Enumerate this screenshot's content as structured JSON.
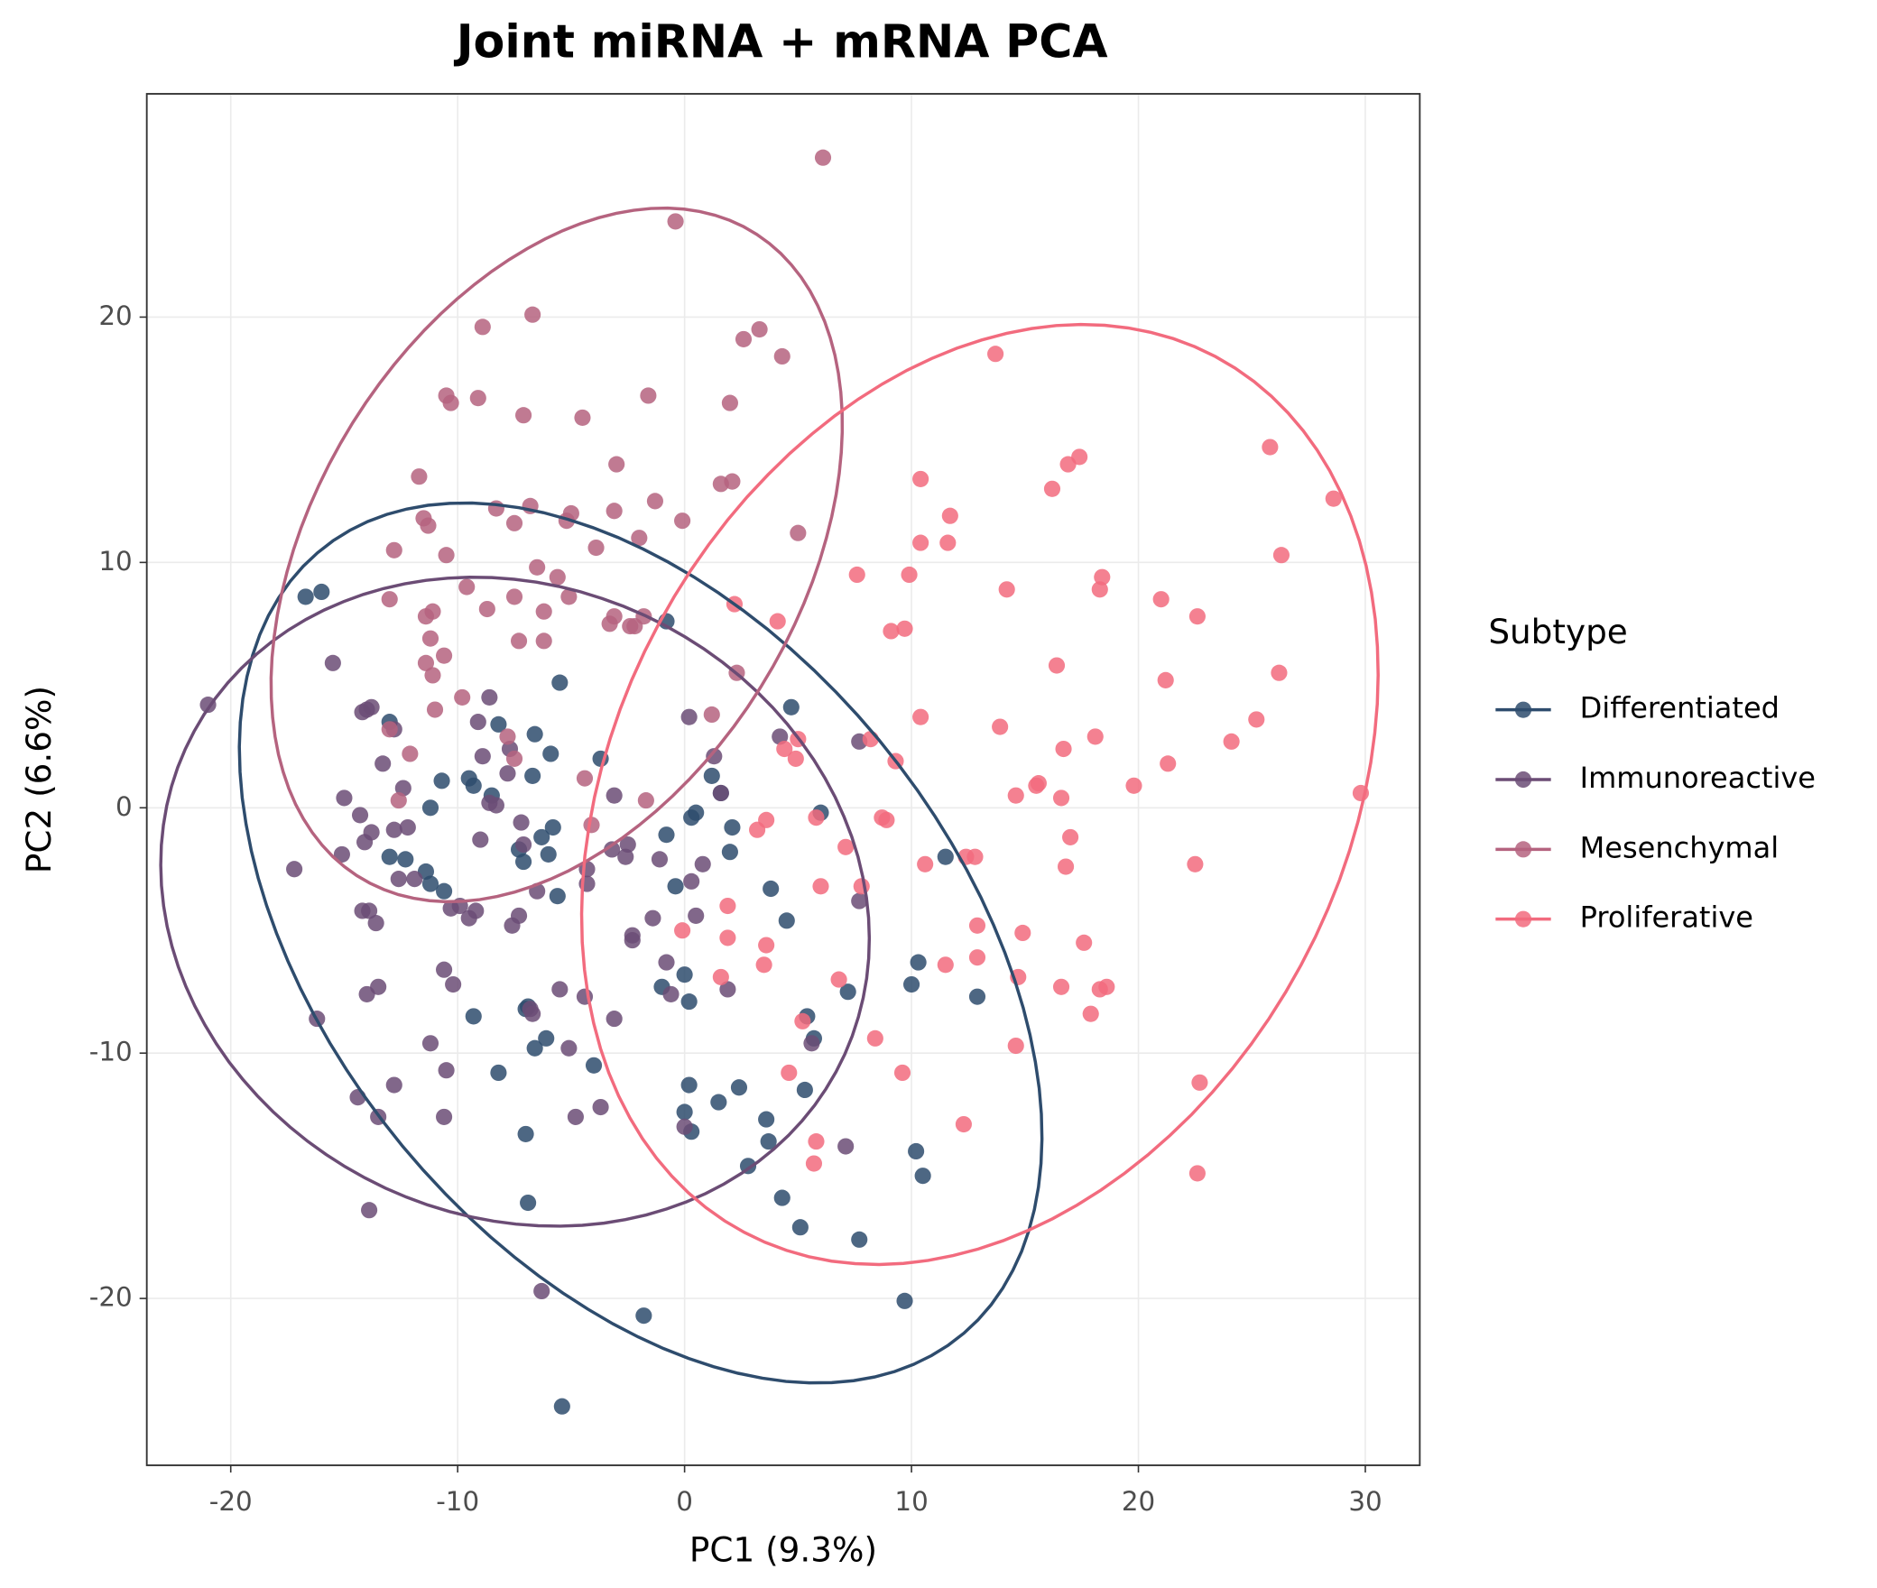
{
  "chart_data": {
    "type": "scatter",
    "title": "Joint miRNA + mRNA PCA",
    "x_label": "PC1 (9.3%)",
    "y_label": "PC2 (6.6%)",
    "legend_title": "Subtype",
    "legend": "right",
    "grid": true,
    "xlim": [
      -23.7,
      32.4
    ],
    "ylim": [
      -26.8,
      29.1
    ],
    "xticks": [
      -20,
      -10,
      0,
      10,
      20,
      30
    ],
    "yticks": [
      -20,
      -10,
      0,
      10,
      20
    ],
    "series": [
      {
        "name": "Differentiated",
        "color": "#2e4c6d",
        "x": [
          -16.7,
          -16,
          -13,
          -8.2,
          -6.6,
          -5.9,
          -5.5,
          -0.8,
          -10.7,
          -9.5,
          -9.3,
          -8.5,
          -6.7,
          -13,
          -12.3,
          -11.4,
          -11.2,
          -10.6,
          -7.3,
          -7.1,
          -6.3,
          -6,
          -5.8,
          -5.6,
          -4,
          -3.7,
          -11.2,
          -9.3,
          -8.2,
          -7,
          -6.9,
          -6.6,
          -6.1,
          -7,
          -6.9,
          -5.4,
          -1.8,
          -0.8,
          -0.4,
          0,
          0.2,
          0.3,
          0.5,
          1.2,
          1.6,
          2.1,
          2,
          -1,
          0.2,
          0,
          0.3,
          1.5,
          2.4,
          2.8,
          3.6,
          3.7,
          3.8,
          4.3,
          4.5,
          4.7,
          5.1,
          5.3,
          5.4,
          6,
          7.2,
          7.7,
          9.7,
          10,
          10.2,
          10.3,
          10.5,
          11.5,
          12.9,
          5.7
        ],
        "values": [
          8.6,
          8.8,
          3.5,
          3.4,
          3,
          2.2,
          5.1,
          7.6,
          1.1,
          1.2,
          0.9,
          0.5,
          1.3,
          -2,
          -2.1,
          -2.6,
          -3.1,
          -3.4,
          -1.7,
          -2.2,
          -1.2,
          -1.9,
          -0.8,
          -3.6,
          -10.5,
          2,
          0,
          -8.5,
          -10.8,
          -8.2,
          -8.1,
          -9.8,
          -9.4,
          -13.3,
          -16.1,
          -24.4,
          -20.7,
          -1.1,
          -3.2,
          -6.8,
          -7.9,
          -0.4,
          -0.2,
          1.3,
          0.6,
          -0.8,
          -1.8,
          -7.3,
          -11.3,
          -12.4,
          -13.2,
          -12,
          -11.4,
          -14.6,
          -12.7,
          -13.6,
          -3.3,
          -15.9,
          -4.6,
          4.1,
          -17.1,
          -11.5,
          -8.5,
          -0.2,
          -7.5,
          -17.6,
          -20.1,
          -7.2,
          -14,
          -6.3,
          -15,
          -2,
          -7.7,
          -9.4
        ]
      },
      {
        "name": "Immunoreactive",
        "color": "#6b4c75",
        "x": [
          -21,
          -15.5,
          -14,
          -13.8,
          -14.2,
          -12.8,
          -13.3,
          -12.4,
          -15,
          -14.3,
          -14.1,
          -13.8,
          -12.8,
          -12.2,
          -15.1,
          -17.2,
          -12.6,
          -11.9,
          -14.2,
          -13.9,
          -13.6,
          -13.5,
          -14,
          -16.2,
          -10.6,
          -10.2,
          -11.2,
          -10.5,
          -12.8,
          -14.4,
          -13.5,
          -10.6,
          -13.9,
          -9.9,
          -9.5,
          -9.2,
          -10.3,
          -9,
          -8.6,
          -8.3,
          -7.8,
          -8.6,
          -9.1,
          -8.9,
          -7.7,
          -7.2,
          -7.1,
          -6.5,
          -7.6,
          -7.3,
          -6.8,
          -6.7,
          -5.1,
          -4.8,
          -3.7,
          -4.4,
          -5.5,
          -4.3,
          -4.3,
          -3.2,
          -2.5,
          -2.6,
          -2.3,
          -2.3,
          -3.1,
          -1.4,
          -1.1,
          -0.8,
          -0.6,
          0,
          0.3,
          0.5,
          0.8,
          1.3,
          1.6,
          1.9,
          0.2,
          -3.1,
          4.2,
          5.6,
          7.1,
          7.7,
          7.7,
          -6.3
        ],
        "values": [
          4.2,
          5.9,
          4,
          4.1,
          3.9,
          3.2,
          1.8,
          0.8,
          0.4,
          -0.3,
          -1.4,
          -1,
          -0.9,
          -0.8,
          -1.9,
          -2.5,
          -2.9,
          -2.9,
          -4.2,
          -4.2,
          -4.7,
          -7.3,
          -7.6,
          -8.6,
          -6.6,
          -7.2,
          -9.6,
          -10.7,
          -11.3,
          -11.8,
          -12.6,
          -12.6,
          -16.4,
          -4,
          -4.5,
          -4.2,
          -4.1,
          -1.3,
          0.2,
          0.1,
          1.4,
          4.5,
          3.5,
          2.1,
          2.4,
          -0.6,
          -1.5,
          -3.4,
          -4.8,
          -4.4,
          -8.2,
          -8.4,
          -9.8,
          -12.6,
          -12.2,
          -7.7,
          -7.4,
          -3.1,
          -2.5,
          -1.7,
          -1.5,
          -2,
          -5.2,
          -5.4,
          -8.6,
          -4.5,
          -2.1,
          -6.3,
          -7.6,
          -13,
          -3,
          -4.4,
          -2.3,
          2.1,
          0.6,
          -7.4,
          3.7,
          0.5,
          2.9,
          -9.6,
          -13.8,
          2.7,
          -3.8,
          -19.7
        ]
      },
      {
        "name": "Mesenchymal",
        "color": "#b5637f",
        "x": [
          -0.4,
          6.1,
          -8.9,
          -6.7,
          2.6,
          3.3,
          4.3,
          -10.5,
          -10.3,
          -9.1,
          -7.1,
          -4.5,
          -1.6,
          2,
          -11.7,
          -3,
          1.6,
          2.1,
          -8.3,
          -7.5,
          -6.8,
          -5.2,
          -5,
          -3.1,
          -1.3,
          -11.5,
          -11.3,
          -12.8,
          -2,
          -0.1,
          5,
          -10.5,
          -3.9,
          -6.5,
          -5.6,
          -9.6,
          -13,
          -11.1,
          -11.4,
          -8.7,
          -7.5,
          -6.2,
          -5.1,
          -3.3,
          -3.1,
          -2.4,
          -2.2,
          -1.8,
          -11.2,
          -10.6,
          -11.4,
          -11.1,
          -7.3,
          -6.2,
          2.3,
          -11,
          -9.8,
          -13,
          -7.8,
          -7.5,
          1.2,
          -12.1,
          -4.4,
          -4.1,
          -1.7,
          -12.6
        ],
        "values": [
          23.9,
          26.5,
          19.6,
          20.1,
          19.1,
          19.5,
          18.4,
          16.8,
          16.5,
          16.7,
          16,
          15.9,
          16.8,
          16.5,
          13.5,
          14,
          13.2,
          13.3,
          12.2,
          11.6,
          12.3,
          11.7,
          12,
          12.1,
          12.5,
          11.8,
          11.5,
          10.5,
          11,
          11.7,
          11.2,
          10.3,
          10.6,
          9.8,
          9.4,
          9,
          8.5,
          8,
          7.8,
          8.1,
          8.6,
          8,
          8.6,
          7.5,
          7.8,
          7.4,
          7.4,
          7.8,
          6.9,
          6.2,
          5.9,
          5.4,
          6.8,
          6.8,
          5.5,
          4,
          4.5,
          3.2,
          2.9,
          2,
          3.8,
          2.2,
          1.2,
          -0.7,
          0.3,
          0.3
        ]
      },
      {
        "name": "Proliferative",
        "color": "#f26b7e",
        "x": [
          13.7,
          16.2,
          16.9,
          17.4,
          25.8,
          28.6,
          26.3,
          10.4,
          11.7,
          10.4,
          11.6,
          7.6,
          9.9,
          14.2,
          18.3,
          18.4,
          21,
          22.6,
          2.2,
          4.1,
          9.1,
          9.7,
          16.4,
          21.2,
          26.2,
          25.2,
          10.4,
          13.9,
          18.1,
          24.1,
          8.2,
          5,
          4.4,
          4.9,
          16.7,
          21.3,
          9.3,
          15.5,
          15.6,
          19.8,
          14.6,
          16.6,
          29.8,
          3.2,
          3.6,
          5.8,
          8.7,
          8.9,
          17,
          7.1,
          10.6,
          12.4,
          12.8,
          16.8,
          22.5,
          1.9,
          6,
          7.8,
          -0.1,
          1.9,
          3.6,
          12.9,
          14.9,
          17.6,
          3.5,
          1.6,
          6.8,
          11.5,
          12.9,
          14.7,
          16.6,
          18.3,
          18.6,
          17.9,
          5.2,
          8.4,
          14.6,
          4.6,
          9.6,
          22.7,
          12.3,
          5.8,
          5.7,
          22.6
        ],
        "values": [
          18.5,
          13,
          14,
          14.3,
          14.7,
          12.6,
          10.3,
          13.4,
          11.9,
          10.8,
          10.8,
          9.5,
          9.5,
          8.9,
          8.9,
          9.4,
          8.5,
          7.8,
          8.3,
          7.6,
          7.2,
          7.3,
          5.8,
          5.2,
          5.5,
          3.6,
          3.7,
          3.3,
          2.9,
          2.7,
          2.8,
          2.8,
          2.4,
          2,
          2.4,
          1.8,
          1.9,
          0.9,
          1,
          0.9,
          0.5,
          0.4,
          0.6,
          -0.9,
          -0.5,
          -0.4,
          -0.4,
          -0.5,
          -1.2,
          -1.6,
          -2.3,
          -2,
          -2,
          -2.4,
          -2.3,
          -4,
          -3.2,
          -3.2,
          -5,
          -5.3,
          -5.6,
          -4.8,
          -5.1,
          -5.5,
          -6.4,
          -6.9,
          -7,
          -6.4,
          -6.1,
          -6.9,
          -7.3,
          -7.4,
          -7.3,
          -8.4,
          -8.7,
          -9.4,
          -9.7,
          -10.8,
          -10.8,
          -11.2,
          -12.9,
          -13.6,
          -14.5,
          -14.9
        ]
      }
    ]
  }
}
